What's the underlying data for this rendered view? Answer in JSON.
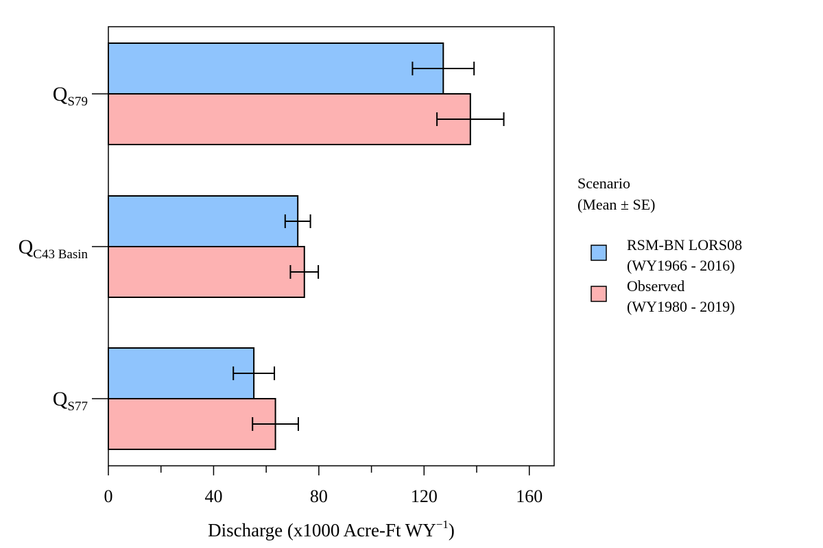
{
  "chart_data": {
    "type": "bar",
    "orientation": "horizontal",
    "categories": [
      {
        "main": "Q",
        "sub": "S79"
      },
      {
        "main": "Q",
        "sub": "C43 Basin"
      },
      {
        "main": "Q",
        "sub": "S77"
      }
    ],
    "series": [
      {
        "name_line1": "RSM-BN LORS08",
        "name_line2": "(WY1966 - 2016)",
        "color": "#8fc4fd",
        "values": [
          127.3,
          72.0,
          55.3
        ],
        "se": [
          11.7,
          4.8,
          7.8
        ]
      },
      {
        "name_line1": "Observed",
        "name_line2": "(WY1980 - 2019)",
        "color": "#fdb2b2",
        "values": [
          137.6,
          74.5,
          63.5
        ],
        "se": [
          12.7,
          5.3,
          8.7
        ]
      }
    ],
    "xlabel_main": "Discharge (x1000 Acre-Ft WY",
    "xlabel_sup": "−1",
    "xlabel_close": ")",
    "xlim": [
      0,
      170
    ],
    "xticks_major": [
      0,
      40,
      80,
      120,
      160
    ],
    "xticks_minor": [
      20,
      60,
      100,
      140
    ],
    "legend": {
      "title_line1": "Scenario",
      "title_line2": "(Mean ± SE)",
      "position": "right"
    },
    "grid": false
  }
}
